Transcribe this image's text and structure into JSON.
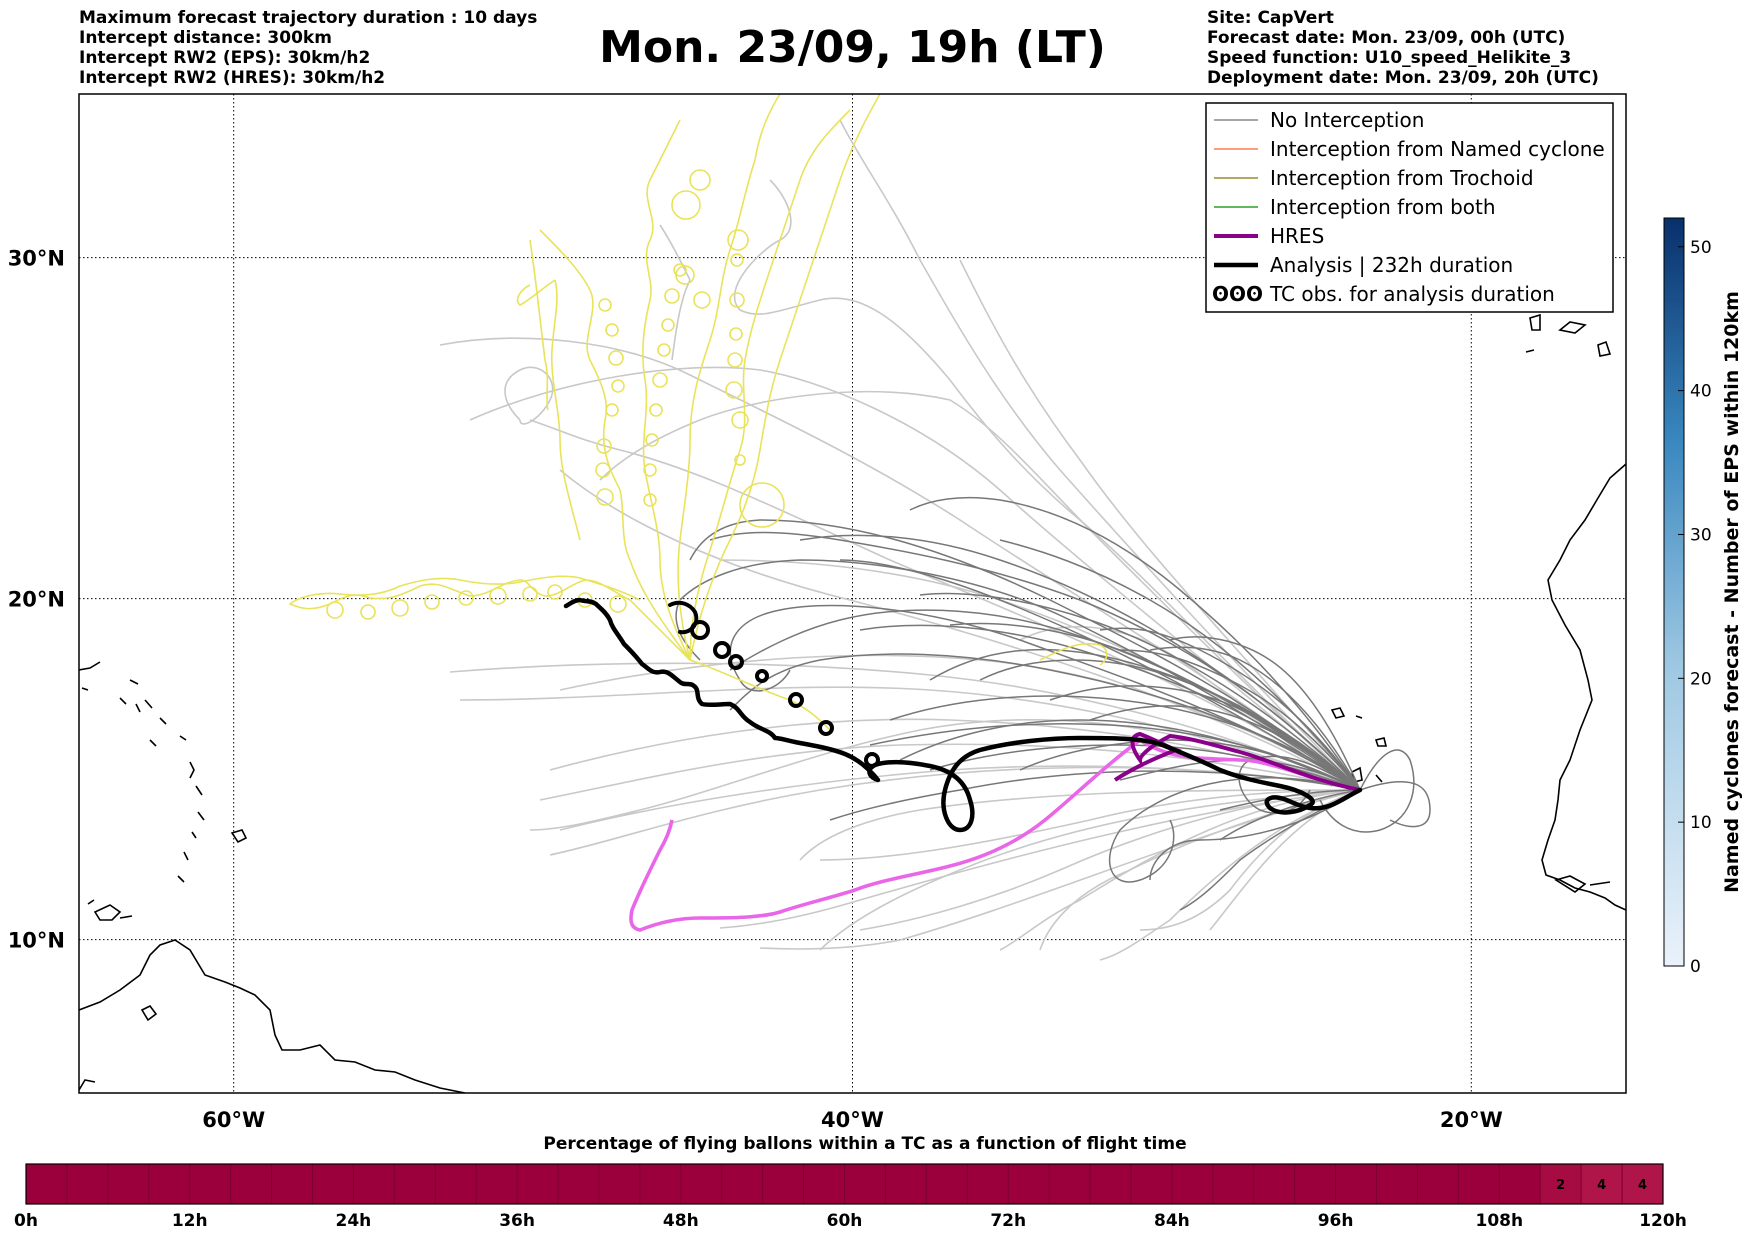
{
  "header": {
    "left_lines": [
      "Maximum forecast trajectory duration : 10 days",
      "Intercept distance: 300km",
      "Intercept RW2 (EPS):  30km/h2",
      "Intercept RW2 (HRES): 30km/h2"
    ],
    "title": "Mon. 23/09, 19h (LT)",
    "right_lines": [
      "Site: CapVert",
      "Forecast date: Mon. 23/09, 00h (UTC)",
      "Speed function: U10_speed_Helikite_3",
      "Deployment date: Mon. 23/09, 20h (UTC)"
    ]
  },
  "map": {
    "lon_range": [
      -65,
      -15
    ],
    "lat_range": [
      5.5,
      34.8
    ],
    "lon_ticks": [
      {
        "lon": -60,
        "label": "60°W"
      },
      {
        "lon": -40,
        "label": "40°W"
      },
      {
        "lon": -20,
        "label": "20°W"
      }
    ],
    "lat_ticks": [
      {
        "lat": 30,
        "label": "30°N"
      },
      {
        "lat": 20,
        "label": "20°N"
      },
      {
        "lat": 10,
        "label": "10°N"
      }
    ]
  },
  "legend": {
    "items": [
      {
        "label": "No Interception",
        "color": "#888888",
        "width": 1.5
      },
      {
        "label": "Interception from Named cyclone",
        "color": "#ff7f50",
        "width": 1.5
      },
      {
        "label": "Interception from Trochoid",
        "color": "#9a8a30",
        "width": 1.5
      },
      {
        "label": "Interception from both",
        "color": "#2ca02c",
        "width": 1.5
      },
      {
        "label": "HRES",
        "color": "#8b008b",
        "width": 4
      },
      {
        "label": "Analysis | 232h duration",
        "color": "#000000",
        "width": 4.5
      },
      {
        "label": "TC obs. for analysis duration",
        "color": "#000000",
        "width": 2,
        "symbol": "ʘʘʘ"
      }
    ]
  },
  "colorbar": {
    "title": "Named cyclones forecast - Number of EPS within 120km",
    "min": 0,
    "max": 52,
    "ticks": [
      0,
      10,
      20,
      30,
      40,
      50
    ],
    "color_low": "#eaf2fb",
    "color_high": "#08306b"
  },
  "flight_bar": {
    "title": "Percentage of flying ballons within a TC as a function of flight time",
    "tick_labels": [
      "0h",
      "12h",
      "24h",
      "36h",
      "48h",
      "60h",
      "72h",
      "84h",
      "96h",
      "108h",
      "120h"
    ],
    "hours_max": 120,
    "base_color": "#9b003d",
    "cells": [
      {
        "label": "2",
        "color": "#a60b42"
      },
      {
        "label": "4",
        "color": "#b0154a"
      },
      {
        "label": "4",
        "color": "#b0154a"
      }
    ]
  },
  "colors": {
    "no_interception": "#888888",
    "eps_light": "#c8c8c8",
    "trochoid": "#e9e35a",
    "hres": "#8b008b",
    "hres_light": "#e966e9",
    "analysis": "#000000"
  }
}
